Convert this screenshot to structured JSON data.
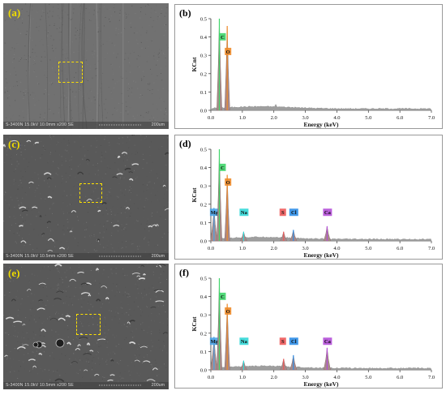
{
  "panels": [
    {
      "sem": {
        "label": "(a)",
        "info": "S-3400N 15.0kV 10.0mm x200 SE",
        "scale": "200um",
        "texture": "smooth"
      },
      "eds": {
        "label": "(b)",
        "xlabel": "Energy (keV)",
        "ylabel": "KCnt",
        "xticks": [
          "0.0",
          "1.0",
          "2.0",
          "3.0",
          "4.0",
          "5.0",
          "6.0",
          "7.0"
        ],
        "yticks": [
          "0.0",
          "0.1",
          "0.2",
          "0.3",
          "0.4",
          "0.5"
        ],
        "peaks": [
          {
            "el": "C",
            "color": "#3fd56a",
            "xkeV": 0.27,
            "h": 0.5
          },
          {
            "el": "O",
            "color": "#ee8a28",
            "xkeV": 0.52,
            "h": 0.46
          }
        ]
      }
    },
    {
      "sem": {
        "label": "(c)",
        "info": "S-3400N 15.0kV 10.5mm x200 SE",
        "scale": "200um",
        "texture": "flakes"
      },
      "eds": {
        "label": "(d)",
        "xlabel": "Energy (keV)",
        "ylabel": "KCnt",
        "xticks": [
          "0.0",
          "1.0",
          "2.0",
          "3.0",
          "4.0",
          "5.0",
          "6.0",
          "7.0"
        ],
        "yticks": [
          "0.0",
          "0.1",
          "0.2",
          "0.3",
          "0.4",
          "0.5"
        ],
        "peaks": [
          {
            "el": "Mg",
            "color": "#4aa3e8",
            "xkeV": 0.1,
            "h": 0.18
          },
          {
            "el": "C",
            "color": "#3fd56a",
            "xkeV": 0.27,
            "h": 0.5
          },
          {
            "el": "O",
            "color": "#ee8a28",
            "xkeV": 0.52,
            "h": 0.36
          },
          {
            "el": "Na",
            "color": "#33d8d8",
            "xkeV": 1.04,
            "h": 0.05
          },
          {
            "el": "S",
            "color": "#ee5a5a",
            "xkeV": 2.31,
            "h": 0.05
          },
          {
            "el": "Cl",
            "color": "#2d8ee8",
            "xkeV": 2.62,
            "h": 0.06
          },
          {
            "el": "Ca",
            "color": "#b44fd8",
            "xkeV": 3.69,
            "h": 0.08
          }
        ]
      }
    },
    {
      "sem": {
        "label": "(e)",
        "info": "S-3400N 15.0kV 10.5mm x200 SE",
        "scale": "200um",
        "texture": "rough"
      },
      "eds": {
        "label": "(f)",
        "xlabel": "Energy (keV)",
        "ylabel": "KCnt",
        "xticks": [
          "0.0",
          "1.0",
          "2.0",
          "3.0",
          "4.0",
          "5.0",
          "6.0",
          "7.0"
        ],
        "yticks": [
          "0.0",
          "0.1",
          "0.2",
          "0.3",
          "0.4",
          "0.5"
        ],
        "peaks": [
          {
            "el": "Mg",
            "color": "#4aa3e8",
            "xkeV": 0.1,
            "h": 0.18
          },
          {
            "el": "C",
            "color": "#3fd56a",
            "xkeV": 0.27,
            "h": 0.5
          },
          {
            "el": "O",
            "color": "#ee8a28",
            "xkeV": 0.52,
            "h": 0.36
          },
          {
            "el": "Na",
            "color": "#33d8d8",
            "xkeV": 1.04,
            "h": 0.05
          },
          {
            "el": "S",
            "color": "#ee5a5a",
            "xkeV": 2.31,
            "h": 0.06
          },
          {
            "el": "Cl",
            "color": "#2d8ee8",
            "xkeV": 2.62,
            "h": 0.08
          },
          {
            "el": "Ca",
            "color": "#b44fd8",
            "xkeV": 3.69,
            "h": 0.12
          }
        ]
      }
    }
  ],
  "chart_data": [
    {
      "type": "area",
      "title": "(b)",
      "xlabel": "Energy (keV)",
      "ylabel": "KCnt",
      "xlim": [
        0,
        7
      ],
      "ylim": [
        0,
        0.5
      ],
      "peaks": [
        {
          "element": "C",
          "energy": 0.27,
          "counts": 0.5
        },
        {
          "element": "O",
          "energy": 0.52,
          "counts": 0.46
        }
      ]
    },
    {
      "type": "area",
      "title": "(d)",
      "xlabel": "Energy (keV)",
      "ylabel": "KCnt",
      "xlim": [
        0,
        7
      ],
      "ylim": [
        0,
        0.5
      ],
      "peaks": [
        {
          "element": "Mg",
          "energy": 0.1,
          "counts": 0.18
        },
        {
          "element": "C",
          "energy": 0.27,
          "counts": 0.5
        },
        {
          "element": "O",
          "energy": 0.52,
          "counts": 0.36
        },
        {
          "element": "Na",
          "energy": 1.04,
          "counts": 0.05
        },
        {
          "element": "S",
          "energy": 2.31,
          "counts": 0.05
        },
        {
          "element": "Cl",
          "energy": 2.62,
          "counts": 0.06
        },
        {
          "element": "Ca",
          "energy": 3.69,
          "counts": 0.08
        }
      ]
    },
    {
      "type": "area",
      "title": "(f)",
      "xlabel": "Energy (keV)",
      "ylabel": "KCnt",
      "xlim": [
        0,
        7
      ],
      "ylim": [
        0,
        0.5
      ],
      "peaks": [
        {
          "element": "Mg",
          "energy": 0.1,
          "counts": 0.18
        },
        {
          "element": "C",
          "energy": 0.27,
          "counts": 0.5
        },
        {
          "element": "O",
          "energy": 0.52,
          "counts": 0.36
        },
        {
          "element": "Na",
          "energy": 1.04,
          "counts": 0.05
        },
        {
          "element": "S",
          "energy": 2.31,
          "counts": 0.06
        },
        {
          "element": "Cl",
          "energy": 2.62,
          "counts": 0.08
        },
        {
          "element": "Ca",
          "energy": 3.69,
          "counts": 0.12
        }
      ]
    }
  ]
}
